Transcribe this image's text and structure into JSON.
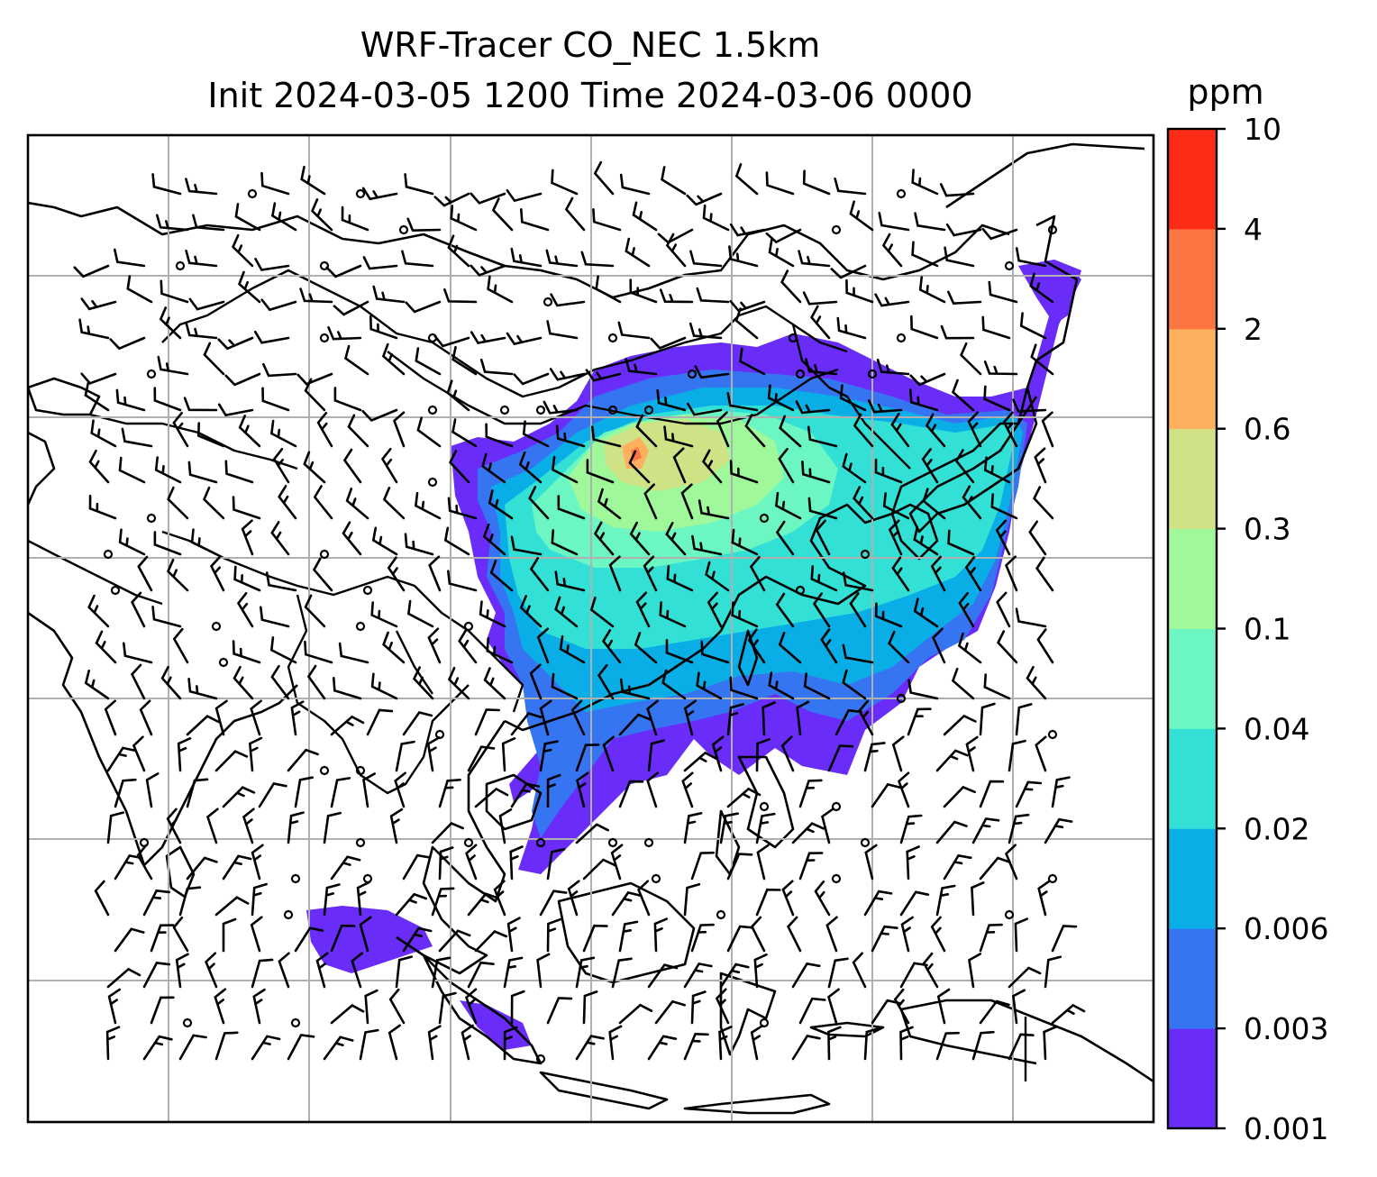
{
  "title": {
    "line1": "WRF-Tracer CO_NEC 1.5km",
    "line2": "Init 2024-03-05 1200 Time 2024-03-06 0000"
  },
  "colorbar": {
    "unit": "ppm",
    "ticks": [
      "0.001",
      "0.003",
      "0.006",
      "0.02",
      "0.04",
      "0.1",
      "0.3",
      "0.6",
      "2",
      "4",
      "10"
    ],
    "colors": [
      "#6a2cf9",
      "#3675f2",
      "#0aaee6",
      "#33e0d6",
      "#6cf6c2",
      "#9ff99a",
      "#cfe286",
      "#fdb15f",
      "#fd7540",
      "#fe2c16"
    ]
  },
  "map": {
    "features": [
      "coastlines",
      "borders",
      "gridlines",
      "co-tracer-field",
      "wind-barbs"
    ],
    "gridline_color": "#b0b0b0"
  }
}
